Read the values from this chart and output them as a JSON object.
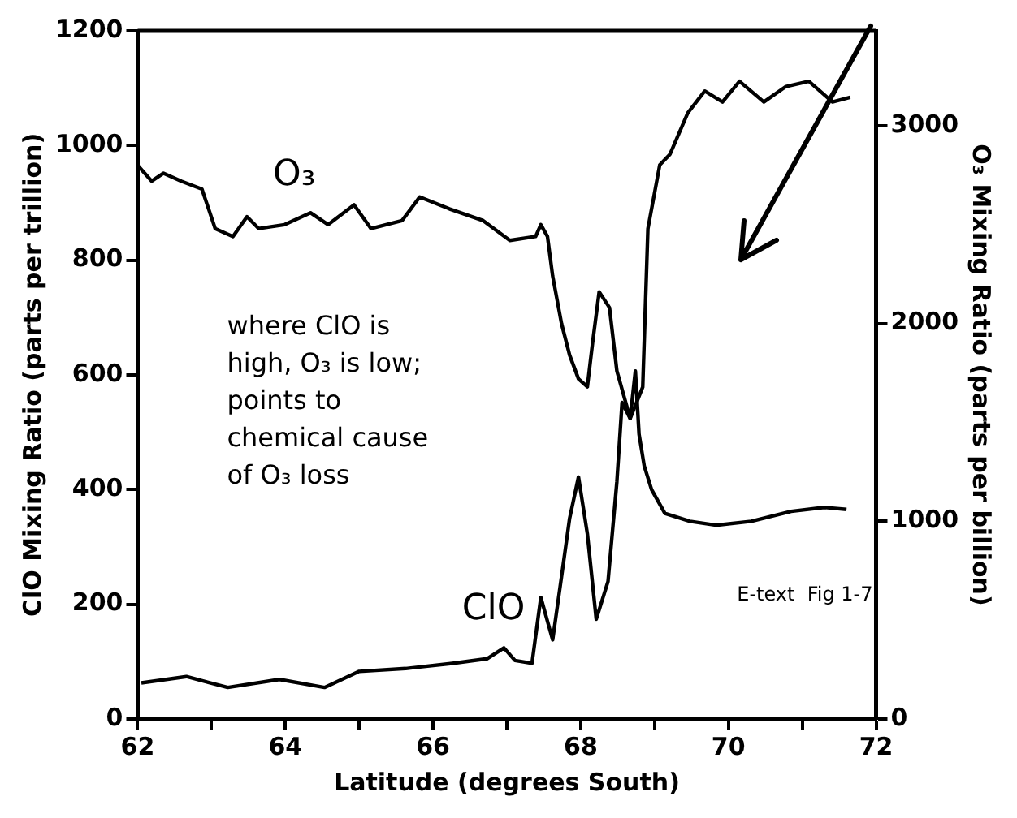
{
  "chart_data": {
    "type": "line",
    "xlabel": "Latitude (degrees South)",
    "ylabel": "ClO Mixing Ratio (parts per trillion)",
    "y2label": "O₃ Mixing Ratio (parts per billion)",
    "xlim": [
      62,
      72
    ],
    "xticks": [
      62,
      {
        "value": 63,
        "label": null
      },
      64,
      {
        "value": 65,
        "label": null
      },
      66,
      {
        "value": 67,
        "label": null
      },
      68,
      {
        "value": 69,
        "label": null
      },
      70,
      {
        "value": 71,
        "label": null
      },
      72
    ],
    "ylim": [
      0,
      1200
    ],
    "yticks": [
      0,
      200,
      400,
      600,
      800,
      1000,
      1200
    ],
    "y2lim": [
      0,
      3480
    ],
    "y2ticks": [
      0,
      1000,
      2000,
      3000
    ],
    "grid": false,
    "legend": false,
    "marker": "none",
    "line_style": "solid",
    "series": [
      {
        "name": "O₃",
        "color": "#000000",
        "axis": "y2",
        "x": [
          62.0,
          62.19,
          62.35,
          62.59,
          62.87,
          63.05,
          63.29,
          63.48,
          63.64,
          63.99,
          64.34,
          64.58,
          64.93,
          65.16,
          65.58,
          65.82,
          66.22,
          66.68,
          67.04,
          67.39,
          67.46,
          67.55,
          67.62,
          67.74,
          67.85,
          67.97,
          68.09,
          68.16,
          68.25,
          68.39,
          68.49,
          68.58,
          68.67,
          68.74,
          68.79,
          68.86,
          68.96,
          69.14,
          69.48,
          69.83,
          70.31,
          70.85,
          71.3,
          71.6
        ],
        "values": [
          2800,
          2720,
          2760,
          2720,
          2680,
          2480,
          2440,
          2540,
          2480,
          2500,
          2560,
          2500,
          2600,
          2480,
          2520,
          2640,
          2580,
          2520,
          2420,
          2440,
          2500,
          2440,
          2240,
          2000,
          1840,
          1720,
          1680,
          1900,
          2160,
          2080,
          1760,
          1640,
          1520,
          1760,
          1440,
          1280,
          1160,
          1040,
          1000,
          980,
          1000,
          1050,
          1070,
          1060
        ]
      },
      {
        "name": "ClO",
        "color": "#000000",
        "x": [
          62.05,
          62.66,
          63.22,
          63.92,
          64.53,
          65.0,
          65.63,
          66.26,
          66.73,
          66.96,
          67.11,
          67.34,
          67.46,
          67.62,
          67.74,
          67.85,
          67.97,
          68.09,
          68.21,
          68.37,
          68.49,
          68.56,
          68.67,
          68.84,
          68.91,
          69.07,
          69.21,
          69.45,
          69.68,
          69.92,
          70.15,
          70.48,
          70.78,
          71.09,
          71.41,
          71.65
        ],
        "values": [
          63,
          74,
          55,
          69,
          55,
          83,
          88,
          97,
          105,
          124,
          102,
          97,
          212,
          138,
          248,
          350,
          422,
          323,
          174,
          240,
          414,
          552,
          524,
          579,
          855,
          966,
          985,
          1057,
          1095,
          1076,
          1112,
          1076,
          1103,
          1112,
          1076,
          1084
        ]
      }
    ],
    "annotations": [
      "where ClO is high, O₃ is low; points to chemical cause of O₃ loss",
      "E-text  Fig 1-7"
    ]
  }
}
